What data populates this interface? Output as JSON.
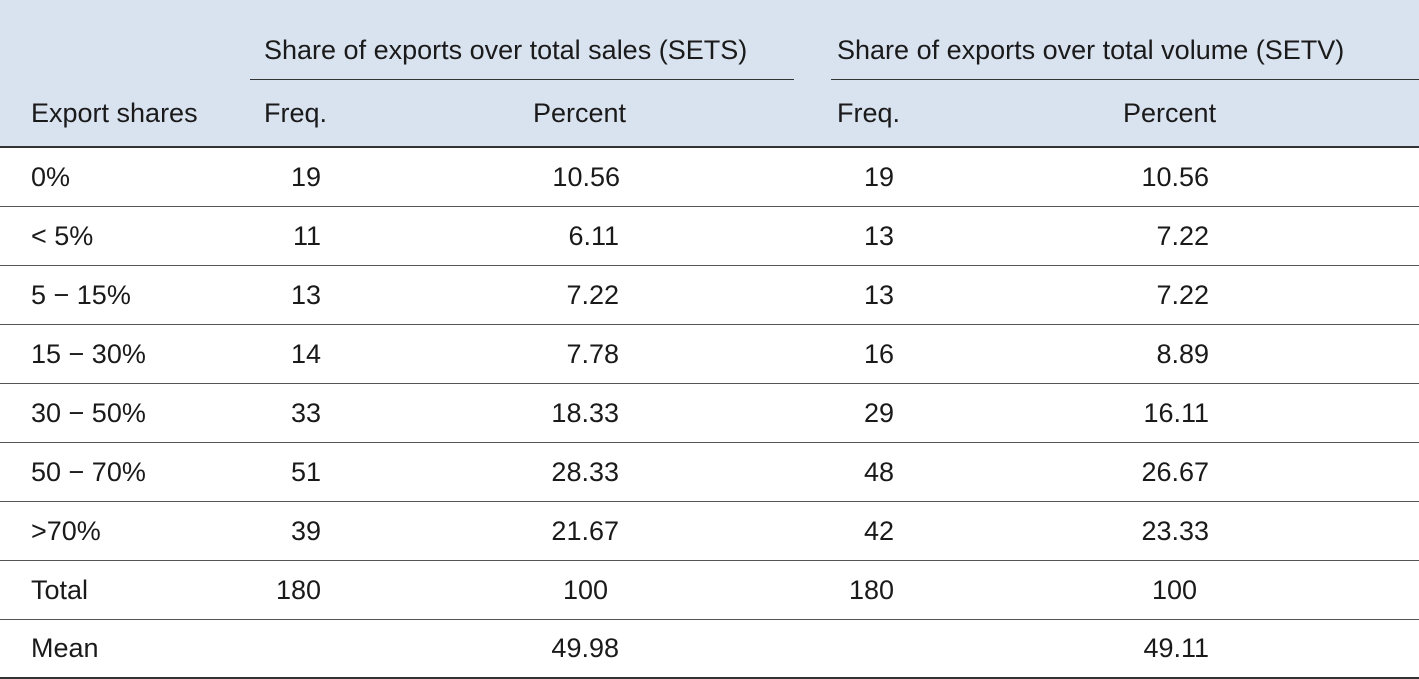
{
  "table": {
    "group_headers": {
      "sets": "Share of exports over total sales (SETS)",
      "setv": "Share of exports over total volume (SETV)"
    },
    "col_headers": {
      "label": "Export shares",
      "sets_freq": "Freq.",
      "sets_percent": "Percent",
      "setv_freq": "Freq.",
      "setv_percent": "Percent"
    },
    "rows": [
      {
        "label": "0%",
        "sets_freq": "19",
        "sets_percent": "10.56",
        "setv_freq": "19",
        "setv_percent": "10.56"
      },
      {
        "label": "< 5%",
        "sets_freq": "11",
        "sets_percent": "6.11",
        "setv_freq": "13",
        "setv_percent": "7.22"
      },
      {
        "label": "5 − 15%",
        "sets_freq": "13",
        "sets_percent": "7.22",
        "setv_freq": "13",
        "setv_percent": "7.22"
      },
      {
        "label": "15 − 30%",
        "sets_freq": "14",
        "sets_percent": "7.78",
        "setv_freq": "16",
        "setv_percent": "8.89"
      },
      {
        "label": "30 − 50%",
        "sets_freq": "33",
        "sets_percent": "18.33",
        "setv_freq": "29",
        "setv_percent": "16.11"
      },
      {
        "label": "50 − 70%",
        "sets_freq": "51",
        "sets_percent": "28.33",
        "setv_freq": "48",
        "setv_percent": "26.67"
      },
      {
        "label": ">70%",
        "sets_freq": "39",
        "sets_percent": "21.67",
        "setv_freq": "42",
        "setv_percent": "23.33"
      },
      {
        "label": "Total",
        "sets_freq": "180",
        "sets_percent": "100",
        "setv_freq": "180",
        "setv_percent": "100"
      },
      {
        "label": "Mean",
        "sets_freq": "",
        "sets_percent": "49.98",
        "setv_freq": "",
        "setv_percent": "49.11"
      }
    ],
    "header_bg": "#d9e2ef"
  }
}
